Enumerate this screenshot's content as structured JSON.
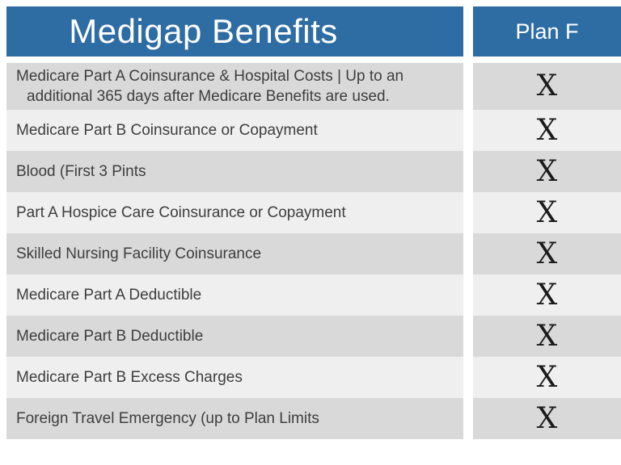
{
  "header": {
    "benefits_title": "Medigap Benefits",
    "plan_title": "Plan F"
  },
  "colors": {
    "header_bg": "#2e6ca4",
    "row_dark": "#d9d9d9",
    "row_light": "#efefef",
    "text": "#3e3e3e",
    "mark": "#1b1b1b",
    "gap_bg": "#ffffff"
  },
  "chart_data": {
    "type": "table",
    "title": "Medigap Benefits",
    "columns": [
      "Medigap Benefits",
      "Plan F"
    ],
    "rows": [
      {
        "benefit": "Medicare Part A Coinsurance & Hospital Costs | Up to an\nadditional 365 days after Medicare Benefits are used.",
        "plan_f": "X"
      },
      {
        "benefit": "Medicare Part B Coinsurance or Copayment",
        "plan_f": "X"
      },
      {
        "benefit": "Blood (First 3 Pints",
        "plan_f": "X"
      },
      {
        "benefit": "Part A Hospice Care Coinsurance or Copayment",
        "plan_f": "X"
      },
      {
        "benefit": "Skilled Nursing Facility Coinsurance",
        "plan_f": "X"
      },
      {
        "benefit": "Medicare Part A Deductible",
        "plan_f": "X"
      },
      {
        "benefit": "Medicare Part B Deductible",
        "plan_f": "X"
      },
      {
        "benefit": "Medicare Part B Excess Charges",
        "plan_f": "X"
      },
      {
        "benefit": "Foreign Travel Emergency (up to Plan Limits",
        "plan_f": "X"
      }
    ],
    "layout": {
      "row_striping": [
        "dark",
        "light"
      ],
      "mark_style": "serif X",
      "legend_position": "none",
      "grid": false
    }
  }
}
